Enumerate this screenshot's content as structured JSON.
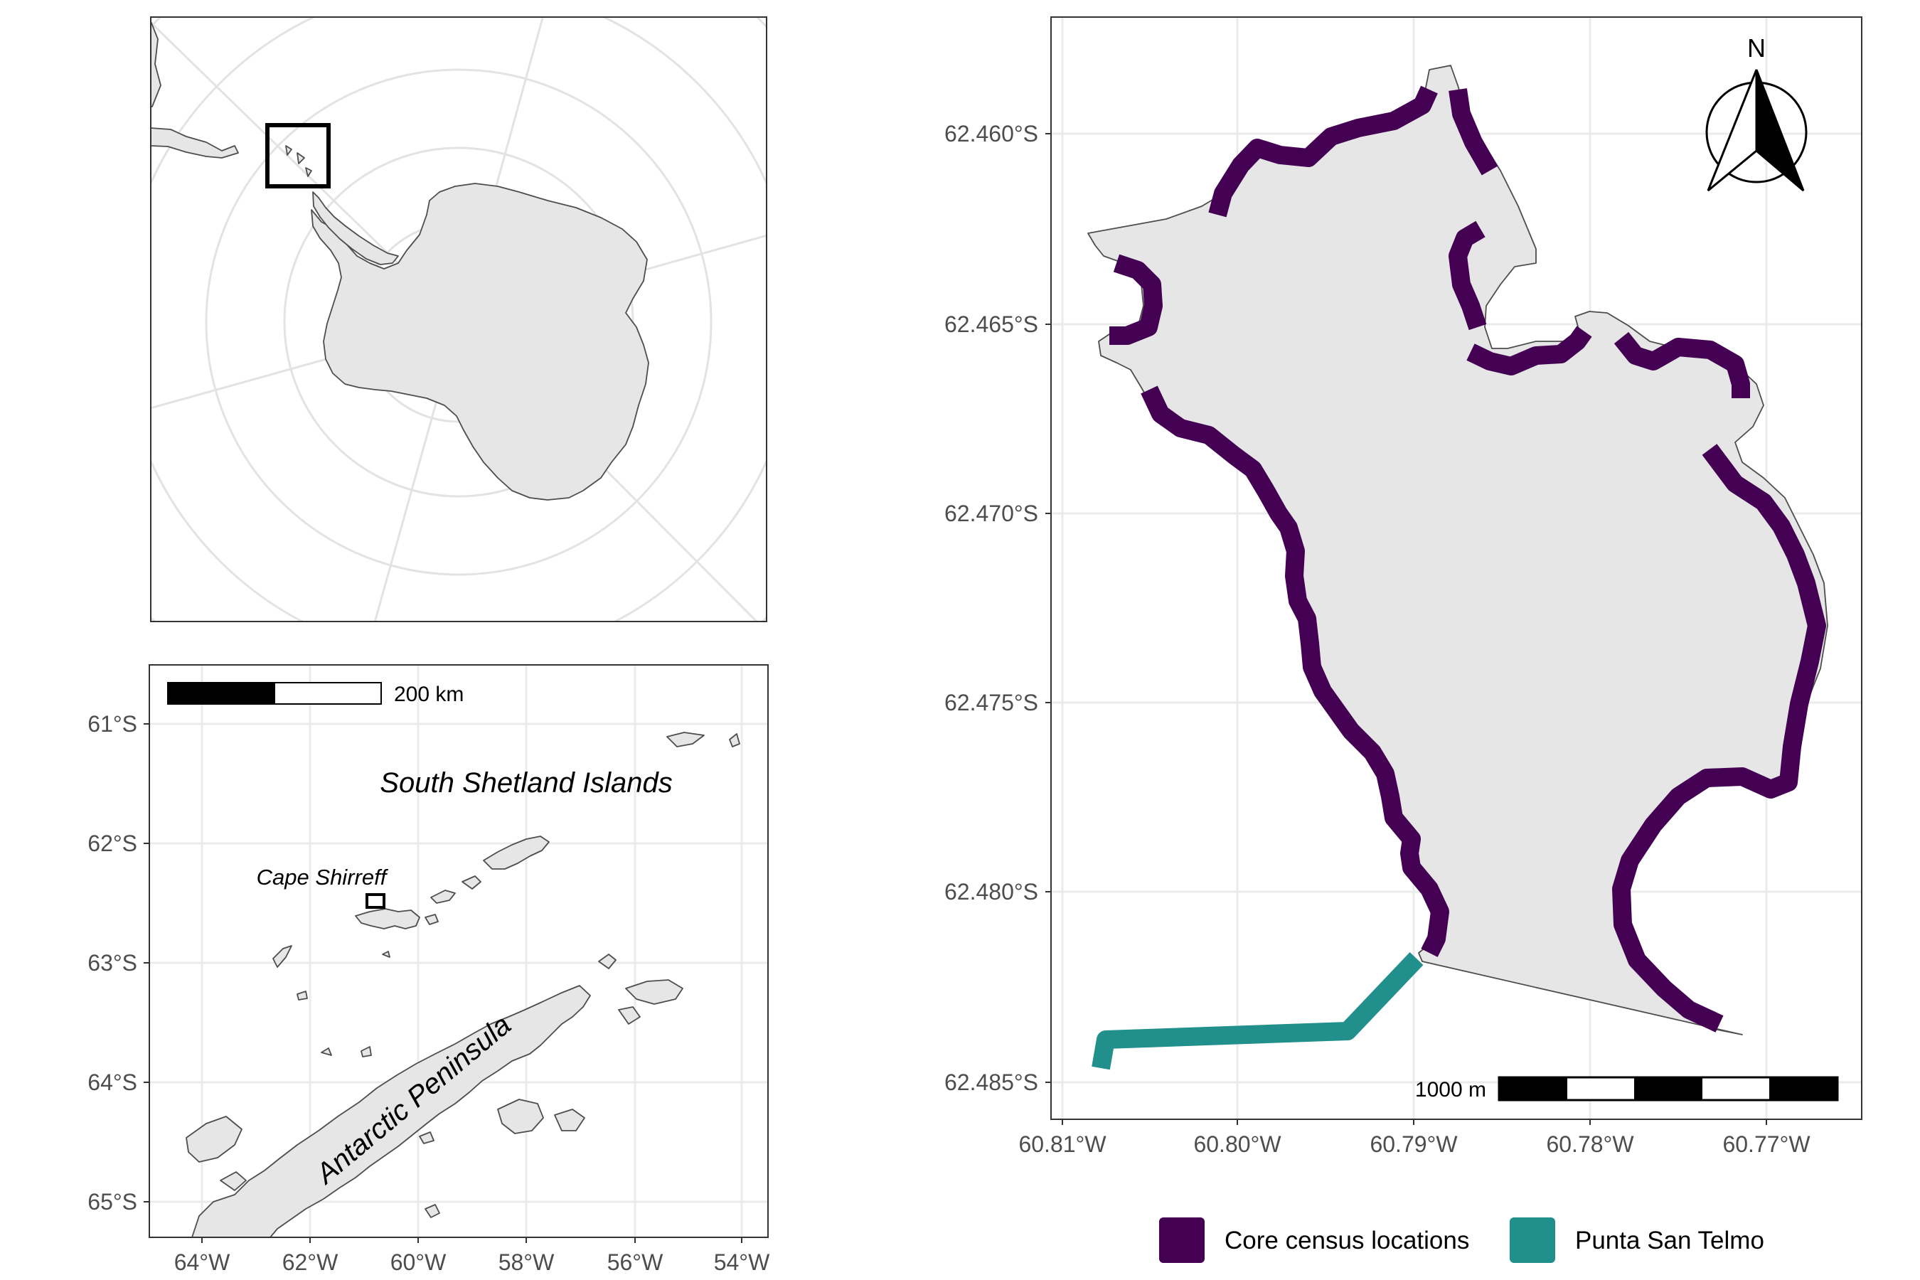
{
  "overview_map": {
    "land_color": "#e6e6e6",
    "inset_box_color": "#000000"
  },
  "region_map": {
    "y_ticks": [
      "61°S",
      "62°S",
      "63°S",
      "64°S",
      "65°S"
    ],
    "x_ticks": [
      "64°W",
      "62°W",
      "60°W",
      "58°W",
      "56°W",
      "54°W"
    ],
    "scale_label": "200 km",
    "label_islands": "South Shetland Islands",
    "label_cape": "Cape Shirreff",
    "label_peninsula": "Antarctic Peninsula"
  },
  "detail_map": {
    "y_ticks": [
      "62.460°S",
      "62.465°S",
      "62.470°S",
      "62.475°S",
      "62.480°S",
      "62.485°S"
    ],
    "x_ticks": [
      "60.81°W",
      "60.80°W",
      "60.79°W",
      "60.78°W",
      "60.77°W"
    ],
    "north_label": "N",
    "scale_label": "1000 m",
    "legend": [
      {
        "label": "Core census locations",
        "color": "#440154"
      },
      {
        "label": "Punta San Telmo",
        "color": "#21908c"
      }
    ]
  }
}
